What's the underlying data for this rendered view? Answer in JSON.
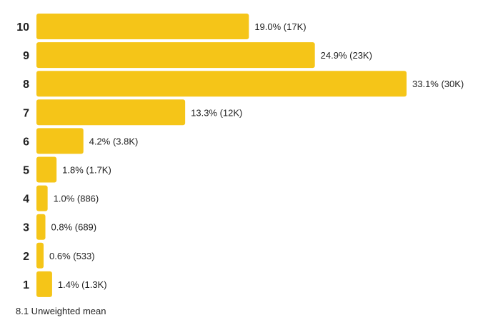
{
  "chart_data": {
    "type": "bar",
    "orientation": "horizontal",
    "categories": [
      "10",
      "9",
      "8",
      "7",
      "6",
      "5",
      "4",
      "3",
      "2",
      "1"
    ],
    "values": [
      19.0,
      24.9,
      33.1,
      13.3,
      4.2,
      1.8,
      1.0,
      0.8,
      0.6,
      1.4
    ],
    "value_labels": [
      "19.0% (17K)",
      "24.9% (23K)",
      "33.1% (30K)",
      "13.3% (12K)",
      "4.2% (3.8K)",
      "1.8% (1.7K)",
      "1.0% (886)",
      "0.8% (689)",
      "0.6% (533)",
      "1.4% (1.3K)"
    ],
    "unit": "%",
    "bar_color": "#F5C518",
    "grid": false,
    "legend": "none"
  },
  "footer": {
    "summary": "8.1 Unweighted mean"
  }
}
